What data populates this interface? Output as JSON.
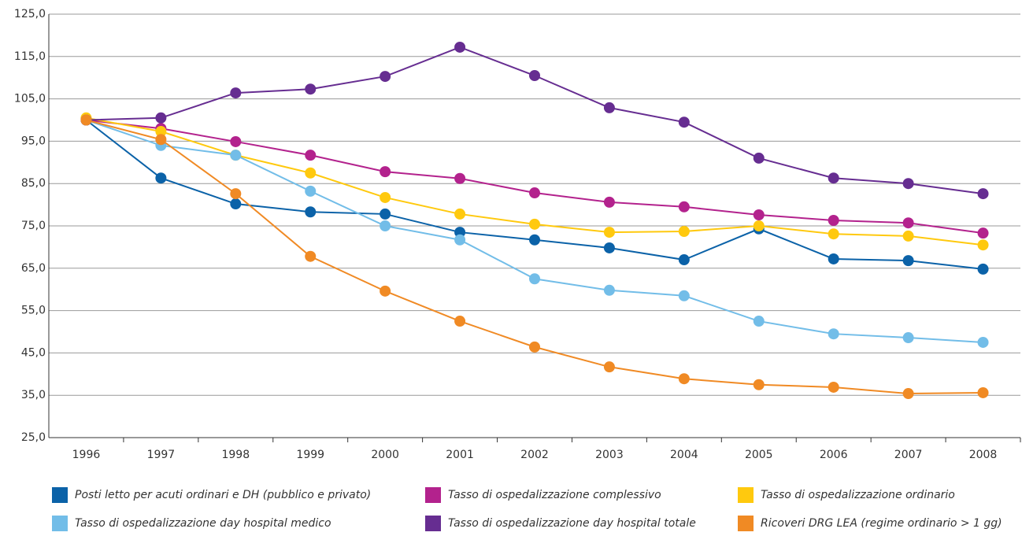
{
  "chart_data": {
    "type": "line",
    "categories": [
      "1996",
      "1997",
      "1998",
      "1999",
      "2000",
      "2001",
      "2002",
      "2003",
      "2004",
      "2005",
      "2006",
      "2007",
      "2008"
    ],
    "ylim": [
      25,
      125
    ],
    "yticks": [
      {
        "value": 25,
        "label": "25,0"
      },
      {
        "value": 35,
        "label": "35,0"
      },
      {
        "value": 45,
        "label": "45,0"
      },
      {
        "value": 55,
        "label": "55,0"
      },
      {
        "value": 65,
        "label": "65,0"
      },
      {
        "value": 75,
        "label": "75,0"
      },
      {
        "value": 85,
        "label": "85,0"
      },
      {
        "value": 95,
        "label": "95,0"
      },
      {
        "value": 105,
        "label": "105,0"
      },
      {
        "value": 115,
        "label": "115,0"
      },
      {
        "value": 125,
        "label": "125,0"
      }
    ],
    "grid": true,
    "series": [
      {
        "name": "Posti letto per acuti ordinari e DH (pubblico e privato)",
        "color": "#0b62a8",
        "values": [
          100,
          86.3,
          80.2,
          78.3,
          77.8,
          73.5,
          71.7,
          69.8,
          67,
          74.3,
          67.2,
          66.8,
          64.8
        ]
      },
      {
        "name": "Tasso di ospedalizzazione complessivo",
        "color": "#b3228d",
        "values": [
          100,
          98,
          94.9,
          91.7,
          87.8,
          86.2,
          82.8,
          80.6,
          79.5,
          77.6,
          76.3,
          75.7,
          73.3
        ]
      },
      {
        "name": "Tasso di ospedalizzazione ordinario",
        "color": "#ffc90e",
        "values": [
          100.5,
          97.3,
          91.7,
          87.5,
          81.7,
          77.8,
          75.4,
          73.5,
          73.7,
          75,
          73.1,
          72.6,
          70.5
        ]
      },
      {
        "name": "Tasso di ospedalizzazione day hospital medico",
        "color": "#72bde8",
        "values": [
          100,
          94,
          91.7,
          83.2,
          75,
          71.7,
          62.5,
          59.8,
          58.5,
          52.5,
          49.5,
          48.6,
          47.5
        ]
      },
      {
        "name": "Tasso di ospedalizzazione day hospital totale",
        "color": "#662d91",
        "values": [
          100,
          100.5,
          106.4,
          107.3,
          110.3,
          117.2,
          110.5,
          102.9,
          99.5,
          91,
          86.3,
          85,
          82.6
        ]
      },
      {
        "name": "Ricoveri DRG LEA (regime ordinario > 1 gg)",
        "color": "#f08a24",
        "values": [
          100,
          95.4,
          82.6,
          67.8,
          59.6,
          52.5,
          46.4,
          41.7,
          38.9,
          37.5,
          36.9,
          35.4,
          35.6
        ]
      }
    ]
  }
}
